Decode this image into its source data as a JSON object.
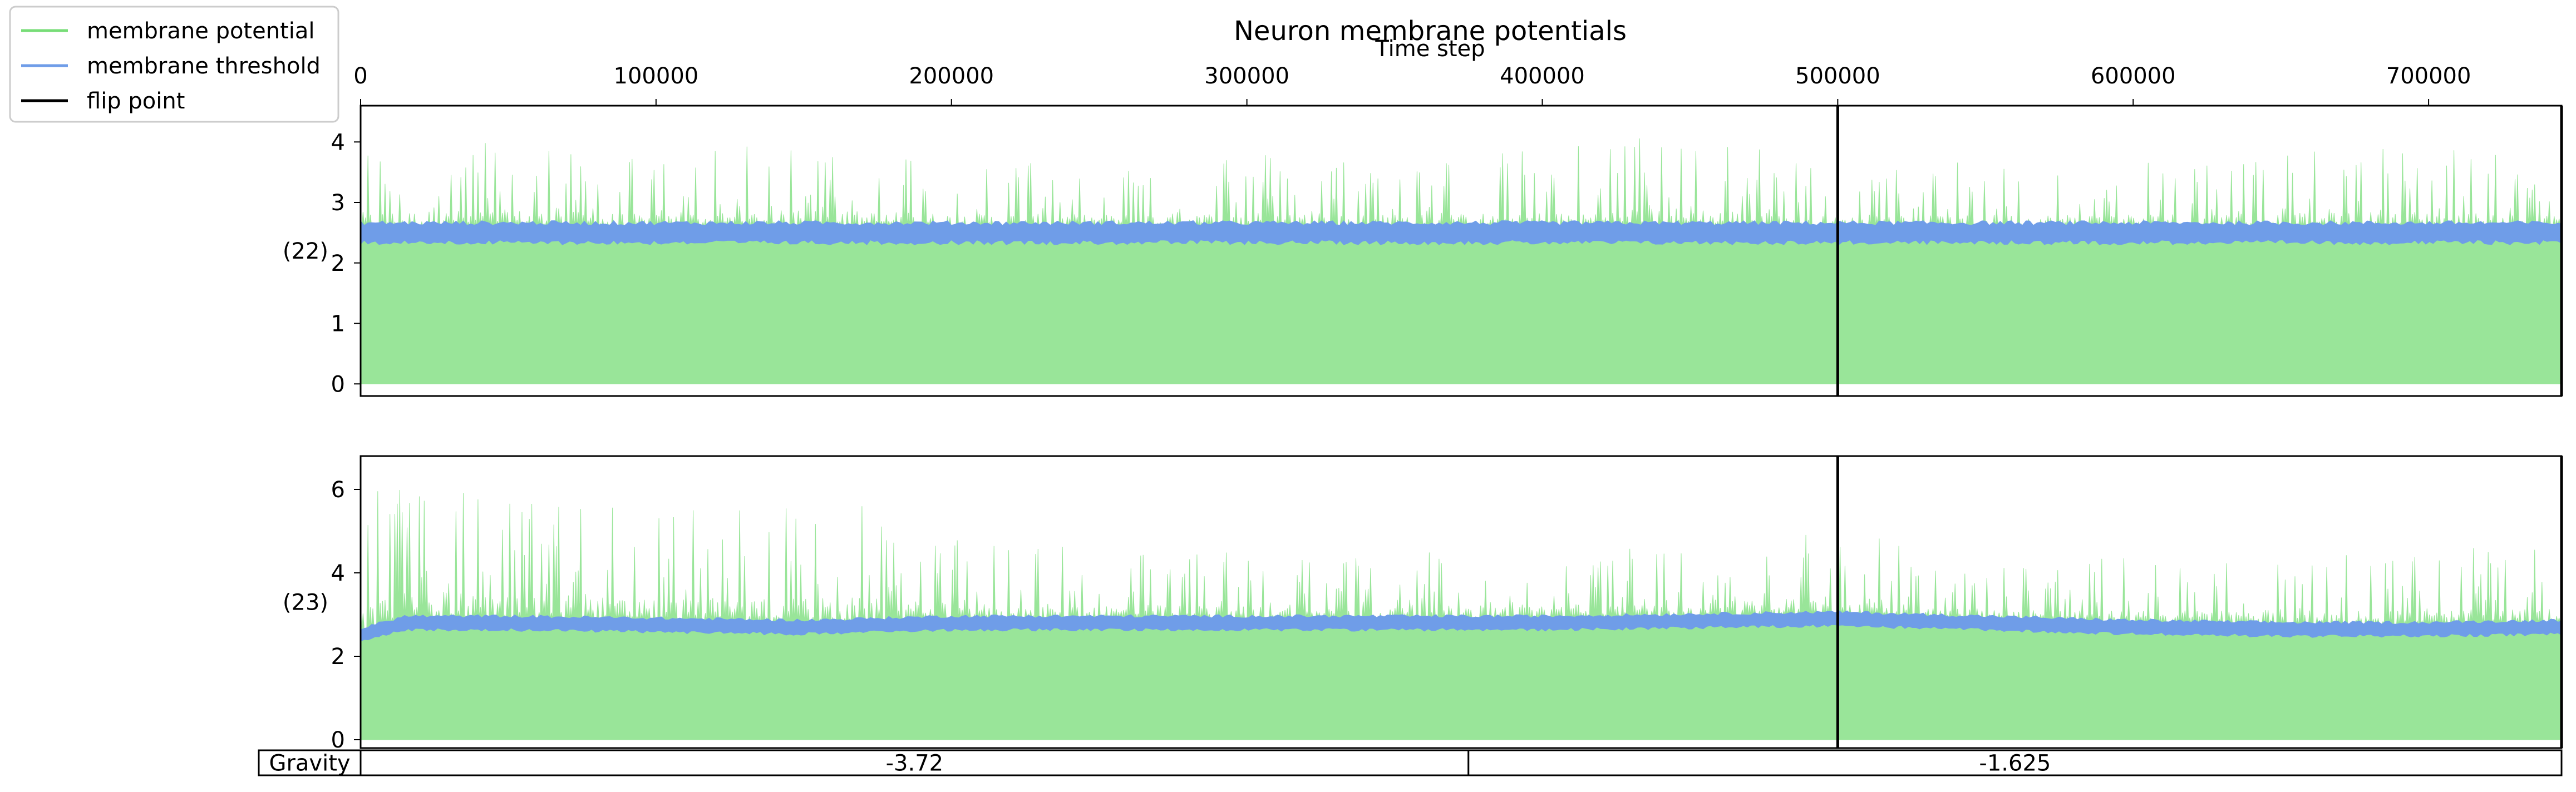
{
  "chart_data": {
    "type": "line",
    "title": "Neuron membrane potentials",
    "xlabel": "Time step",
    "x_ticks": [
      0,
      100000,
      200000,
      300000,
      400000,
      500000,
      600000,
      700000
    ],
    "xlim": [
      0,
      745000
    ],
    "legend": {
      "placement": "top-left",
      "entries": [
        {
          "label": "membrane potential",
          "color": "#77dd77"
        },
        {
          "label": "membrane threshold",
          "color": "#6f9de8"
        },
        {
          "label": "flip point",
          "color": "#000000"
        }
      ]
    },
    "flip_points": [
      500000,
      745000
    ],
    "panels": [
      {
        "ylabel": "(22)",
        "ylim": [
          -0.2,
          4.6
        ],
        "y_ticks": [
          0,
          1,
          2,
          3,
          4
        ],
        "series": [
          {
            "name": "membrane potential",
            "color": "#77dd77",
            "x": [
              0,
              50000,
              100000,
              150000,
              200000,
              250000,
              300000,
              350000,
              400000,
              450000,
              500000,
              550000,
              600000,
              650000,
              700000,
              745000
            ],
            "y": [
              3.9,
              4.1,
              3.7,
              4.1,
              3.8,
              3.7,
              3.9,
              3.7,
              3.9,
              4.3,
              3.5,
              3.7,
              3.8,
              3.8,
              4.0,
              3.6
            ]
          },
          {
            "name": "membrane threshold",
            "color": "#6f9de8",
            "x": [
              0,
              50000,
              100000,
              150000,
              200000,
              250000,
              300000,
              350000,
              400000,
              450000,
              500000,
              550000,
              600000,
              650000,
              700000,
              745000
            ],
            "y": [
              2.5,
              2.5,
              2.5,
              2.5,
              2.5,
              2.5,
              2.5,
              2.5,
              2.5,
              2.5,
              2.5,
              2.5,
              2.5,
              2.5,
              2.5,
              2.5
            ]
          }
        ]
      },
      {
        "ylabel": "(23)",
        "ylim": [
          -0.2,
          6.8
        ],
        "y_ticks": [
          0,
          2,
          4,
          6
        ],
        "series": [
          {
            "name": "membrane potential",
            "color": "#77dd77",
            "x": [
              0,
              50000,
              100000,
              150000,
              165000,
              200000,
              250000,
              300000,
              350000,
              400000,
              450000,
              500000,
              550000,
              600000,
              650000,
              700000,
              745000
            ],
            "y": [
              6.3,
              5.8,
              5.6,
              5.8,
              5.8,
              4.8,
              4.7,
              4.5,
              4.4,
              4.8,
              4.5,
              5.3,
              4.2,
              4.4,
              4.7,
              4.6,
              4.6
            ]
          },
          {
            "name": "membrane threshold",
            "color": "#6f9de8",
            "x": [
              0,
              15000,
              50000,
              100000,
              150000,
              200000,
              250000,
              300000,
              350000,
              400000,
              450000,
              500000,
              550000,
              600000,
              650000,
              700000,
              745000
            ],
            "y": [
              2.5,
              2.8,
              2.8,
              2.75,
              2.7,
              2.8,
              2.8,
              2.8,
              2.8,
              2.8,
              2.85,
              2.9,
              2.8,
              2.7,
              2.65,
              2.65,
              2.7
            ]
          }
        ]
      }
    ],
    "table": {
      "row_label": "Gravity",
      "cells": [
        {
          "text": "-3.72",
          "x_start": 0,
          "x_end": 375000
        },
        {
          "text": "-1.625",
          "x_start": 375000,
          "x_end": 750000
        }
      ]
    }
  }
}
